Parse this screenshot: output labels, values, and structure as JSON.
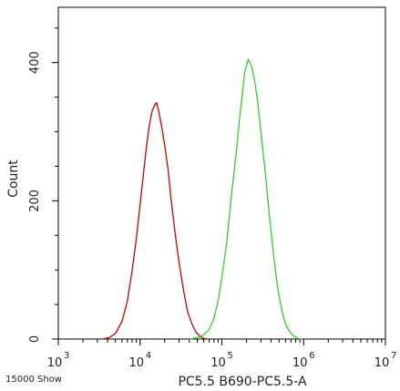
{
  "chart_data": {
    "type": "line",
    "title": "",
    "xlabel": "PC5.5 B690-PC5.5-A",
    "ylabel": "Count",
    "x_scale": "log",
    "xlim": [
      1000,
      10000000
    ],
    "ylim": [
      0,
      480
    ],
    "x_ticks": [
      {
        "value": 1000,
        "base": "10",
        "exp": "3"
      },
      {
        "value": 10000,
        "base": "10",
        "exp": "4"
      },
      {
        "value": 100000,
        "base": "10",
        "exp": "5"
      },
      {
        "value": 1000000,
        "base": "10",
        "exp": "6"
      },
      {
        "value": 10000000,
        "base": "10",
        "exp": "7"
      }
    ],
    "y_ticks": [
      {
        "value": 0,
        "label": "0"
      },
      {
        "value": 200,
        "label": "200"
      },
      {
        "value": 400,
        "label": "400"
      }
    ],
    "grid": false,
    "series": [
      {
        "color": "#cc0000",
        "x": [
          3500,
          4200,
          5000,
          6000,
          7000,
          8000,
          9000,
          10000,
          11000,
          12000,
          13000,
          14000,
          15000,
          15800,
          16500,
          17500,
          18500,
          20000,
          22000,
          24000,
          27000,
          30000,
          34000,
          38000,
          43000,
          48000,
          54000,
          60000,
          66000
        ],
        "y": [
          0,
          2,
          8,
          25,
          55,
          100,
          145,
          195,
          240,
          280,
          310,
          330,
          338,
          342,
          335,
          320,
          305,
          280,
          245,
          200,
          150,
          110,
          70,
          40,
          22,
          10,
          4,
          1,
          0
        ]
      },
      {
        "color": "#33cc33",
        "x": [
          40000,
          50000,
          60000,
          70000,
          80000,
          90000,
          100000,
          115000,
          130000,
          150000,
          170000,
          190000,
          210000,
          230000,
          250000,
          270000,
          300000,
          340000,
          380000,
          430000,
          480000,
          540000,
          600000,
          680000,
          760000,
          850000,
          950000
        ],
        "y": [
          0,
          2,
          6,
          14,
          30,
          55,
          90,
          140,
          205,
          270,
          335,
          385,
          405,
          395,
          375,
          350,
          300,
          240,
          180,
          120,
          75,
          42,
          22,
          10,
          4,
          1,
          0
        ]
      }
    ]
  },
  "footer_note": "15000 Show"
}
